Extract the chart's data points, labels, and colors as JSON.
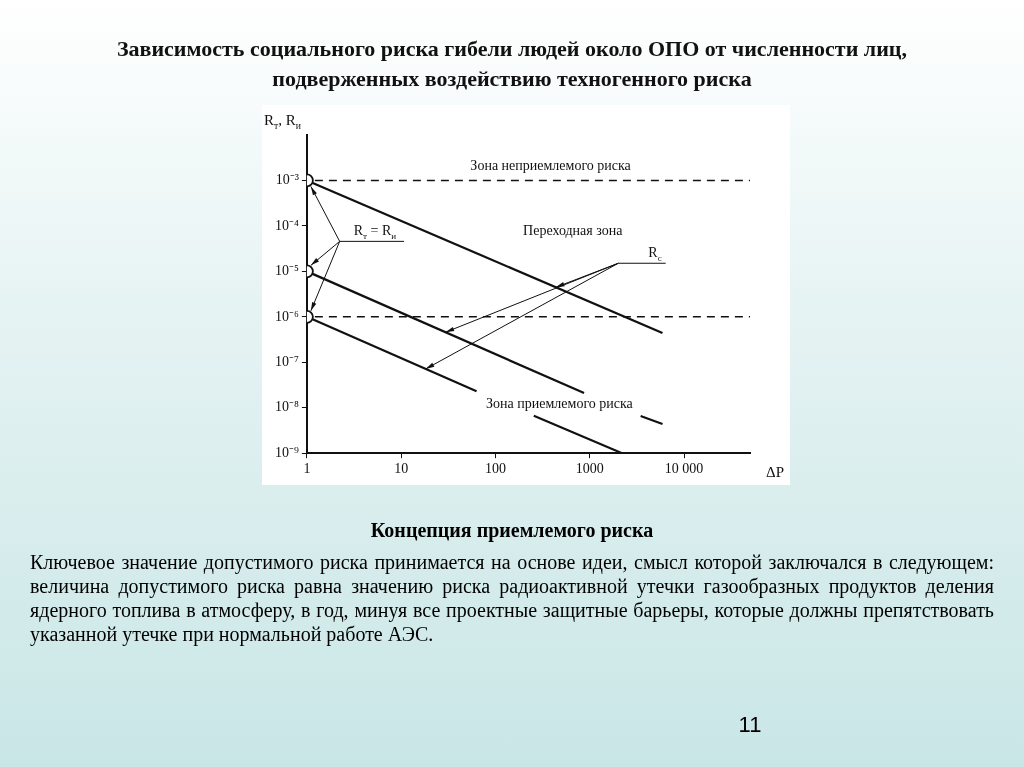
{
  "chart_data": {
    "type": "line",
    "title": "Зависимость социального риска гибели людей около ОПО от численности лиц, подверженных воздействию техногенного риска",
    "subtitle": "Концепция приемлемого риска",
    "xlabel": "ΔP",
    "ylabel": "R$_{т}$, R$_{и}$",
    "log": "xy",
    "xlim": [
      1,
      50000
    ],
    "ylim": [
      1e-09,
      0.01
    ],
    "xticks": [
      1,
      10,
      100,
      1000,
      10000
    ],
    "yticks": [
      {
        "value": 0.001,
        "label": "10⁻³"
      },
      {
        "value": 0.0001,
        "label": "10⁻⁴"
      },
      {
        "value": 1e-05,
        "label": "10⁻⁵"
      },
      {
        "value": 1e-06,
        "label": "10⁻⁶"
      },
      {
        "value": 1e-07,
        "label": "10⁻⁷"
      },
      {
        "value": 1e-08,
        "label": "10⁻⁸"
      },
      {
        "value": 1e-09,
        "label": "10⁻⁹"
      }
    ],
    "legend": false,
    "line_style": "solid",
    "marker": "none",
    "series": [
      {
        "color": "#111111",
        "x": [
          1,
          5900
        ],
        "values": [
          0.001,
          4.4e-07
        ]
      },
      {
        "color": "#111111",
        "x": [
          1,
          870
        ],
        "values": [
          1e-05,
          2.1e-08
        ]
      },
      {
        "color": "#111111",
        "x": [
          1,
          63
        ],
        "values": [
          1e-06,
          2.3e-08
        ]
      },
      {
        "color": "#111111",
        "x": [
          255,
          2200
        ],
        "values": [
          6.7e-09,
          1e-09
        ]
      },
      {
        "color": "#111111",
        "x": [
          3460,
          5900
        ],
        "values": [
          6.6e-09,
          4.4e-09
        ]
      },
      {
        "type": "scatter",
        "marker": "circle",
        "color": "#111111",
        "x": [
          1,
          1,
          1
        ],
        "values": [
          0.001,
          1e-05,
          1e-06
        ]
      }
    ],
    "ref_lines": [
      {
        "axis": "y",
        "value": 0.001,
        "line_style": "dashed",
        "color": "#111111"
      },
      {
        "axis": "y",
        "value": 1e-06,
        "line_style": "dashed",
        "color": "#111111"
      }
    ],
    "annotations": [
      "Зона неприемлемого риска",
      "Переходная зона",
      "Зона приемлемого риска",
      {
        "text": "R$_{т}$ = R$_{и}$",
        "x": 1,
        "y": 1e-05
      },
      "R$_{с}$",
      "Ключевое значение допустимого риска принимается на основе идеи, смысл которой заключался в следующем: величина допустимого риска равна значению риска радиоактивной утечки газообразных продуктов деления ядерного топлива в атмосферу, в год, минуя все проектные защитные барьеры, которые должны препятствовать указанной утечке при нормальной работе АЭС.",
      "11"
    ]
  }
}
